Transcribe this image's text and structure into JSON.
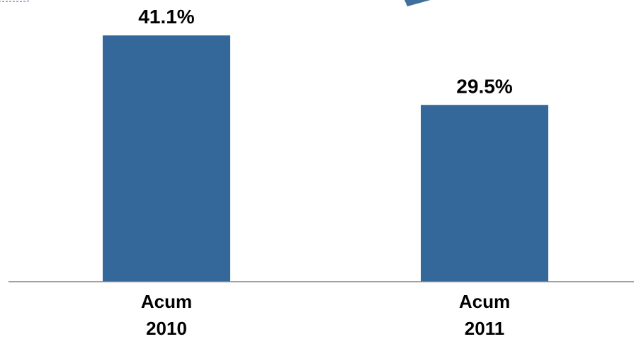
{
  "chart_data": {
    "type": "bar",
    "categories": [
      [
        "Acum",
        "2010"
      ],
      [
        "Acum",
        "2011"
      ]
    ],
    "values": [
      41.1,
      29.5
    ],
    "value_labels": [
      "41.1%",
      "29.5%"
    ],
    "unit": "%",
    "title": "",
    "xlabel": "",
    "ylabel": "",
    "ylim": [
      0,
      45
    ],
    "grid": false,
    "legend": "none",
    "bar_color": "#34679A"
  }
}
